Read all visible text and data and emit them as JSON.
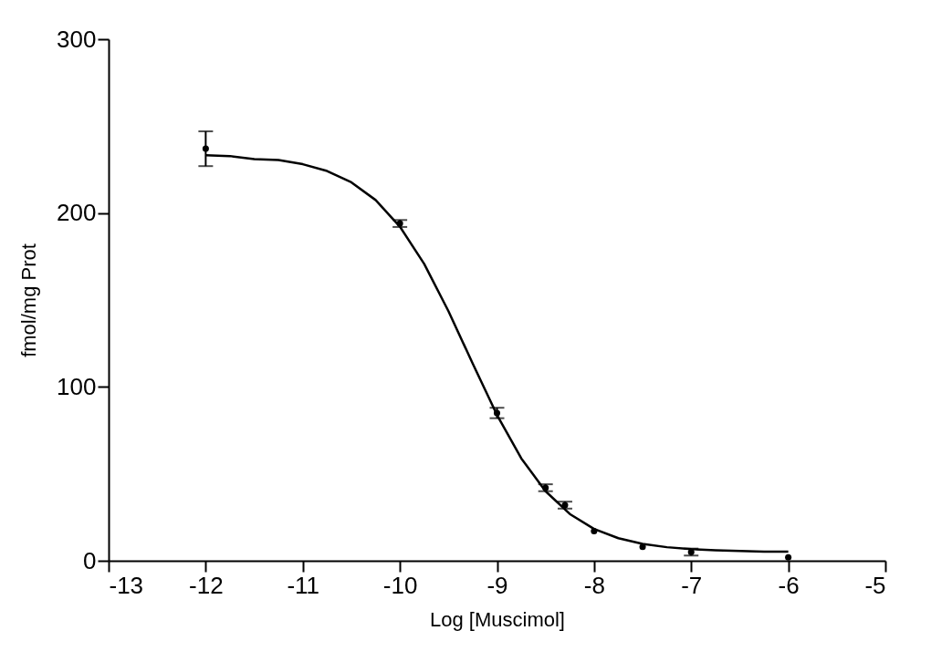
{
  "chart_data": {
    "type": "scatter",
    "xlabel": "Log [Muscimol]",
    "ylabel": "fmol/mg Prot",
    "xlim": [
      -13,
      -5
    ],
    "xticks": [
      -13,
      -12,
      -11,
      -10,
      -9,
      -8,
      -7,
      -6,
      -5
    ],
    "ylim": [
      0,
      300
    ],
    "yticks": [
      0,
      100,
      200,
      300
    ],
    "grid": false,
    "series": [
      {
        "marker": "circle",
        "color": "#000000",
        "x": [
          -12,
          -10,
          -9,
          -8.5,
          -8.3,
          -8,
          -7.5,
          -7,
          -6
        ],
        "values": [
          237,
          194,
          85,
          42,
          32,
          17,
          8,
          5,
          2
        ],
        "errors": [
          10,
          2,
          3,
          2,
          2,
          null,
          null,
          2,
          null
        ]
      },
      {
        "type": "line",
        "color": "#000000",
        "line_style": "solid",
        "x": [
          -12,
          -11.75,
          -11.5,
          -11.25,
          -11,
          -10.75,
          -10.5,
          -10.25,
          -10,
          -9.75,
          -9.5,
          -9.25,
          -9,
          -8.75,
          -8.5,
          -8.25,
          -8,
          -7.75,
          -7.5,
          -7.25,
          -7,
          -6.75,
          -6.5,
          -6.25,
          -6
        ],
        "values": [
          233.3,
          232.8,
          231.0,
          230.5,
          228.1,
          224.2,
          217.7,
          207.5,
          192.2,
          170.8,
          143.6,
          113.4,
          83.9,
          58.9,
          40.0,
          26.9,
          18.3,
          13.0,
          9.7,
          7.8,
          6.7,
          6.0,
          5.6,
          5.3,
          5.2
        ]
      }
    ]
  }
}
